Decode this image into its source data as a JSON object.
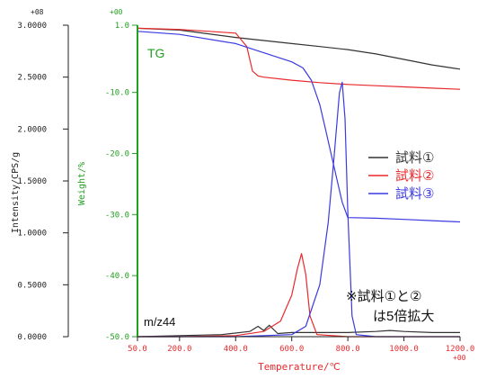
{
  "chart_data": {
    "type": "line",
    "xlabel": "Temperature/℃",
    "x_multiplier": "+00",
    "xlim": [
      50.0,
      1200.0
    ],
    "x_ticks": [
      "50.0",
      "200.0",
      "400.0",
      "600.0",
      "800.0",
      "1000.0",
      "1200.0"
    ],
    "left_axis": {
      "label": "Intensity/CPS/g",
      "multiplier": "+08",
      "ylim": [
        0.0,
        3.0
      ],
      "ticks": [
        "0.0000",
        "0.5000",
        "1.0000",
        "1.5000",
        "2.0000",
        "2.5000",
        "3.0000"
      ]
    },
    "right_axis": {
      "label": "Weight/%",
      "multiplier": "+00",
      "ylim": [
        -50.0,
        1.0
      ],
      "ticks": [
        "-50.0",
        "-40.0",
        "-30.0",
        "-20.0",
        "-10.0",
        "1.0"
      ]
    },
    "annotations": {
      "tg": "TG",
      "mz": "m/z44",
      "note_line1": "※試料①と②",
      "note_line2": "は5倍拡大"
    },
    "legend_position": "right",
    "series": [
      {
        "name": "試料①",
        "kind": "TG",
        "axis": "weight",
        "color": "#333333",
        "x": [
          50,
          200,
          400,
          600,
          700,
          800,
          900,
          1000,
          1100,
          1200
        ],
        "y": [
          0.5,
          0.2,
          -1.0,
          -2.0,
          -2.5,
          -3.0,
          -3.7,
          -4.6,
          -5.5,
          -6.2
        ]
      },
      {
        "name": "試料②",
        "kind": "TG",
        "axis": "weight",
        "color": "#e8292c",
        "x": [
          50,
          200,
          400,
          440,
          460,
          480,
          500,
          600,
          700,
          800,
          900,
          1000,
          1100,
          1200
        ],
        "y": [
          0.5,
          0.3,
          -0.3,
          -2.5,
          -6.5,
          -7.3,
          -7.5,
          -8.0,
          -8.4,
          -8.7,
          -8.9,
          -9.1,
          -9.3,
          -9.5
        ]
      },
      {
        "name": "試料③",
        "kind": "TG",
        "axis": "weight",
        "color": "#3a3ae0",
        "x": [
          50,
          200,
          400,
          600,
          640,
          670,
          700,
          720,
          740,
          760,
          780,
          800,
          900,
          1000,
          1100,
          1200
        ],
        "y": [
          0.0,
          -0.5,
          -2.0,
          -5.0,
          -6.0,
          -8.0,
          -12.0,
          -16.0,
          -20.0,
          -24.0,
          -28.0,
          -30.5,
          -30.6,
          -30.8,
          -31.0,
          -31.2
        ]
      },
      {
        "name": "試料①",
        "kind": "m/z44",
        "axis": "intensity",
        "color": "#333333",
        "x": [
          50,
          200,
          350,
          450,
          480,
          500,
          520,
          550,
          600,
          700,
          800,
          900,
          950,
          1000,
          1100,
          1200
        ],
        "y": [
          0.0,
          0.01,
          0.02,
          0.05,
          0.1,
          0.06,
          0.11,
          0.03,
          0.04,
          0.04,
          0.04,
          0.05,
          0.06,
          0.05,
          0.04,
          0.04
        ]
      },
      {
        "name": "試料②",
        "kind": "m/z44",
        "axis": "intensity",
        "color": "#e8292c",
        "x": [
          50,
          200,
          400,
          500,
          560,
          600,
          620,
          635,
          650,
          665,
          690,
          800,
          1000,
          1200
        ],
        "y": [
          0.0,
          0.0,
          0.01,
          0.05,
          0.15,
          0.4,
          0.65,
          0.8,
          0.6,
          0.2,
          0.02,
          0.0,
          0.0,
          0.0
        ]
      },
      {
        "name": "試料③",
        "kind": "m/z44",
        "axis": "intensity",
        "color": "#3a3ae0",
        "x": [
          50,
          400,
          600,
          650,
          700,
          730,
          750,
          770,
          780,
          790,
          800,
          815,
          830,
          900,
          1200
        ],
        "y": [
          0.0,
          0.0,
          0.02,
          0.1,
          0.5,
          1.1,
          1.7,
          2.35,
          2.45,
          2.1,
          1.2,
          0.2,
          0.02,
          0.0,
          0.0
        ]
      }
    ],
    "legend": [
      {
        "label": "試料①",
        "color": "#333333"
      },
      {
        "label": "試料②",
        "color": "#e8292c"
      },
      {
        "label": "試料③",
        "color": "#3a3ae0"
      }
    ]
  }
}
